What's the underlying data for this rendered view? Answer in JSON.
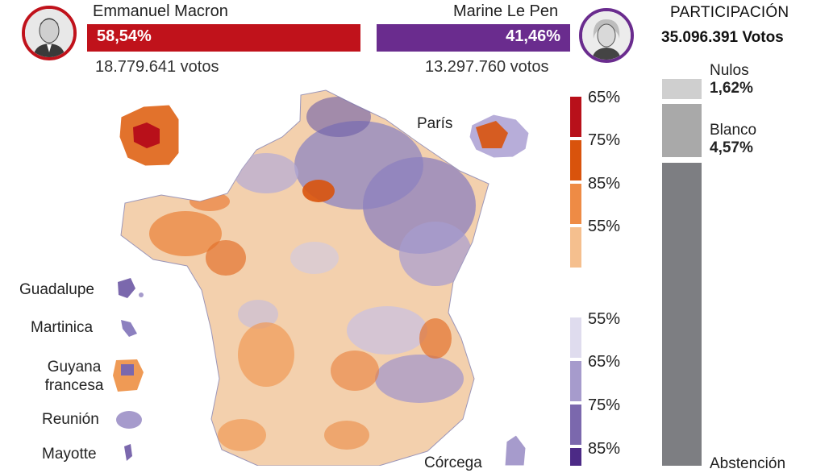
{
  "candidates": {
    "macron": {
      "name": "Emmanuel Macron",
      "percent": "58,54%",
      "votes": "18.779.641 votos",
      "color": "#c0121b"
    },
    "lepen": {
      "name": "Marine Le Pen",
      "percent": "41,46%",
      "votes": "13.297.760 votos",
      "color": "#6a2c8e"
    }
  },
  "legend": {
    "macron_scale": [
      {
        "label": "65%",
        "color": "#b8101a"
      },
      {
        "label": "75%",
        "color": "#d9530c"
      },
      {
        "label": "85%",
        "color": "#ee8b45"
      },
      {
        "label": "55%",
        "color": "#f5bf8e"
      }
    ],
    "lepen_scale": [
      {
        "label": "55%",
        "color": "#dfdcee"
      },
      {
        "label": "65%",
        "color": "#a69bcc"
      },
      {
        "label": "75%",
        "color": "#7b68ad"
      },
      {
        "label": "85%",
        "color": "#4c2a86"
      }
    ]
  },
  "map": {
    "paris_label": "París",
    "corsica_label": "Córcega",
    "territories": [
      "Guadalupe",
      "Martinica",
      "Guyana francesa",
      "Reunión",
      "Mayotte"
    ]
  },
  "participation": {
    "title": "PARTICIPACIÓN",
    "total": "35.096.391 Votos",
    "nulos_label": "Nulos",
    "nulos_value": "1,62%",
    "blanco_label": "Blanco",
    "blanco_value": "4,57%",
    "abstencion_label": "Abstención"
  }
}
